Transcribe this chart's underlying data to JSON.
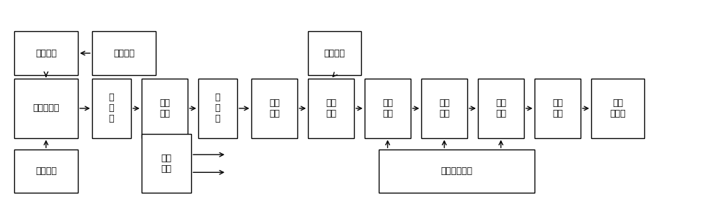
{
  "boxes": {
    "高压电源": [
      0.02,
      0.62,
      0.09,
      0.22
    ],
    "高压调节": [
      0.13,
      0.62,
      0.09,
      0.22
    ],
    "辐射探测器": [
      0.02,
      0.3,
      0.09,
      0.3
    ],
    "分压电路": [
      0.02,
      0.02,
      0.09,
      0.22
    ],
    "放大器1": [
      0.13,
      0.3,
      0.055,
      0.3
    ],
    "脉冲整形": [
      0.2,
      0.3,
      0.065,
      0.3
    ],
    "放大器2": [
      0.28,
      0.3,
      0.055,
      0.3
    ],
    "钳位电路": [
      0.355,
      0.3,
      0.065,
      0.3
    ],
    "阈值调节": [
      0.435,
      0.62,
      0.075,
      0.22
    ],
    "甄别输出": [
      0.435,
      0.3,
      0.065,
      0.3
    ],
    "门控电路1": [
      0.515,
      0.3,
      0.065,
      0.3
    ],
    "计数电路": [
      0.595,
      0.3,
      0.065,
      0.3
    ],
    "门控电路2": [
      0.675,
      0.3,
      0.065,
      0.3
    ],
    "驱动输出": [
      0.755,
      0.3,
      0.065,
      0.3
    ],
    "地面控制台": [
      0.835,
      0.3,
      0.075,
      0.3
    ],
    "低压电源": [
      0.2,
      0.02,
      0.07,
      0.3
    ],
    "时序控制电路": [
      0.535,
      0.02,
      0.22,
      0.22
    ]
  },
  "box_labels": {
    "高压电源": "高压电源",
    "高压调节": "高压调节",
    "辐射探测器": "辐射探测器",
    "分压电路": "分压电路",
    "放大器1": "放\n大\n器",
    "脉冲整形": "脉冲\n整形",
    "放大器2": "放\n大\n器",
    "钳位电路": "钳位\n电路",
    "阈值调节": "阈值调节",
    "甄别输出": "甄别\n输出",
    "门控电路1": "门控\n电路",
    "计数电路": "计数\n电路",
    "门控电路2": "门控\n电路",
    "驱动输出": "驱动\n输出",
    "地面控制台": "地面\n控制台",
    "低压电源": "低压\n电源",
    "时序控制电路": "时序控制电路"
  },
  "bg_color": "#ffffff",
  "box_edge_color": "#000000",
  "box_face_color": "#ffffff",
  "arrow_color": "#000000",
  "fontsize": 9,
  "fontfamily": "SimHei"
}
